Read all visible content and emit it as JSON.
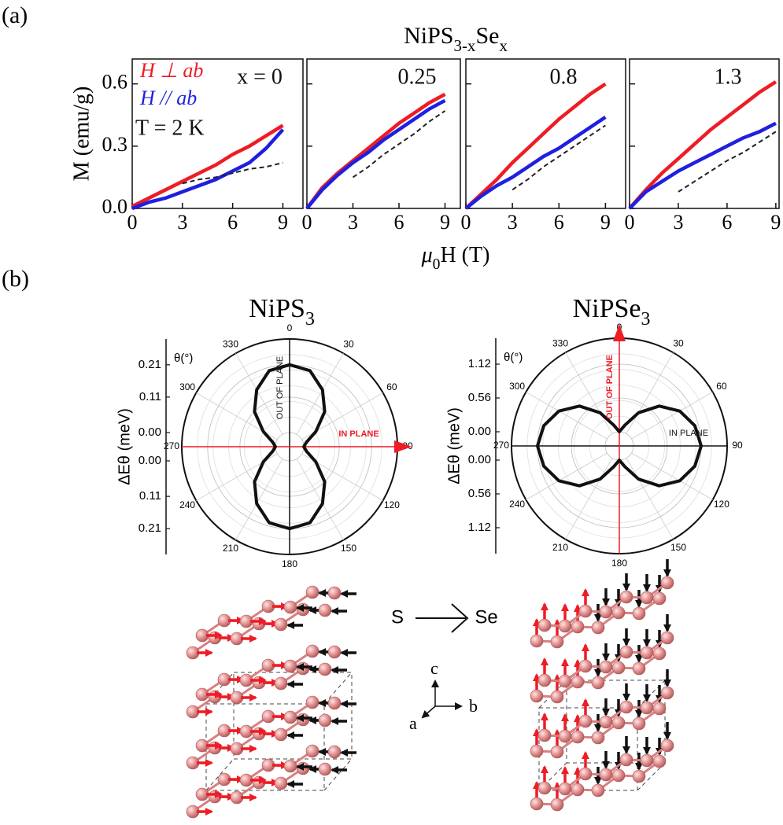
{
  "panel_labels": [
    "(a)",
    "(b)"
  ],
  "supertitle": [
    "NiPS",
    "3-x",
    "Se",
    "x"
  ],
  "xlabel": [
    "μ",
    "0",
    "H (T)"
  ],
  "schematic": {
    "from": "S",
    "to": "Se",
    "axes": [
      "c",
      "a",
      "b"
    ]
  },
  "chart_data": [
    {
      "type": "line",
      "ylabel": "M (emu/g)",
      "x": [
        0,
        1,
        2,
        3,
        4,
        5,
        6,
        7,
        8,
        9
      ],
      "series": [
        {
          "name": "H ⊥ ab",
          "color": "#ee1c25",
          "values": [
            0.01,
            0.05,
            0.09,
            0.13,
            0.17,
            0.21,
            0.26,
            0.3,
            0.35,
            0.4
          ]
        },
        {
          "name": "H // ab",
          "color": "#1f1fe0",
          "values": [
            0.0,
            0.03,
            0.05,
            0.08,
            0.11,
            0.14,
            0.18,
            0.22,
            0.29,
            0.38
          ]
        },
        {
          "color": "#222222",
          "style": "dashed",
          "values": [
            null,
            null,
            null,
            0.12,
            0.14,
            0.15,
            0.17,
            0.19,
            0.2,
            0.22
          ]
        }
      ],
      "xlim": [
        0,
        10.2
      ],
      "ylim": [
        0,
        0.72
      ],
      "xticks": [
        0,
        3,
        6,
        9
      ],
      "yticks": [
        {
          "value": 0,
          "label": "0.0"
        },
        0.3,
        0.6
      ],
      "annotations": [
        "x = 0",
        "T = 2 K"
      ]
    },
    {
      "type": "line",
      "x": [
        0,
        1,
        2,
        3,
        4,
        5,
        6,
        7,
        8,
        9
      ],
      "series": [
        {
          "color": "#ee1c25",
          "values": [
            0,
            0.1,
            0.17,
            0.23,
            0.29,
            0.35,
            0.41,
            0.46,
            0.51,
            0.55
          ]
        },
        {
          "color": "#1f1fe0",
          "values": [
            0,
            0.09,
            0.16,
            0.22,
            0.27,
            0.33,
            0.38,
            0.43,
            0.48,
            0.52
          ]
        },
        {
          "color": "#222222",
          "style": "dashed",
          "values": [
            null,
            null,
            null,
            0.15,
            0.2,
            0.26,
            0.31,
            0.36,
            0.42,
            0.47
          ]
        }
      ],
      "xlim": [
        0,
        10
      ],
      "ylim": [
        0,
        0.72
      ],
      "xticks": [
        0,
        3,
        6,
        9
      ],
      "annotations": [
        "0.25"
      ]
    },
    {
      "type": "line",
      "x": [
        0,
        1,
        2,
        3,
        4,
        5,
        6,
        7,
        8,
        9
      ],
      "series": [
        {
          "color": "#ee1c25",
          "values": [
            0,
            0.07,
            0.14,
            0.22,
            0.29,
            0.36,
            0.43,
            0.49,
            0.55,
            0.6
          ]
        },
        {
          "color": "#1f1fe0",
          "values": [
            0,
            0.06,
            0.11,
            0.15,
            0.2,
            0.25,
            0.29,
            0.34,
            0.39,
            0.44
          ]
        },
        {
          "color": "#222222",
          "style": "dashed",
          "values": [
            null,
            null,
            null,
            0.09,
            0.14,
            0.2,
            0.25,
            0.3,
            0.35,
            0.4
          ]
        }
      ],
      "xlim": [
        0,
        10.3
      ],
      "ylim": [
        0,
        0.72
      ],
      "xticks": [
        0,
        3,
        6,
        9
      ],
      "annotations": [
        "0.8"
      ]
    },
    {
      "type": "line",
      "x": [
        0,
        1,
        2,
        3,
        4,
        5,
        6,
        7,
        8,
        9
      ],
      "series": [
        {
          "color": "#ee1c25",
          "values": [
            0,
            0.09,
            0.17,
            0.24,
            0.31,
            0.38,
            0.44,
            0.5,
            0.56,
            0.61
          ]
        },
        {
          "color": "#1f1fe0",
          "values": [
            0,
            0.08,
            0.13,
            0.18,
            0.22,
            0.26,
            0.3,
            0.34,
            0.37,
            0.41
          ]
        },
        {
          "color": "#222222",
          "style": "dashed",
          "values": [
            null,
            null,
            null,
            0.08,
            0.13,
            0.18,
            0.23,
            0.27,
            0.32,
            0.37
          ]
        }
      ],
      "xlim": [
        0,
        9.2
      ],
      "ylim": [
        0,
        0.72
      ],
      "xticks": [
        0,
        3,
        6,
        9
      ],
      "annotations": [
        "1.3"
      ]
    },
    {
      "type": "polar",
      "title": [
        "NiPS",
        "3"
      ],
      "ylabel": "ΔEθ (meV)",
      "theta_label": "θ(°)",
      "theta": [
        0,
        15,
        30,
        45,
        60,
        75,
        90,
        105,
        120,
        135,
        150,
        165,
        180,
        195,
        210,
        225,
        240,
        255,
        270,
        285,
        300,
        315,
        330,
        345
      ],
      "values": [
        0.21,
        0.2,
        0.16,
        0.11,
        0.05,
        0.01,
        0.0,
        0.01,
        0.05,
        0.11,
        0.16,
        0.2,
        0.21,
        0.2,
        0.16,
        0.11,
        0.05,
        0.01,
        0.0,
        0.01,
        0.05,
        0.11,
        0.16,
        0.2
      ],
      "color": "#111111",
      "rlim": [
        0,
        0.29
      ],
      "rticks": [
        {
          "value": 0,
          "label": "0.00"
        },
        0.11,
        0.21
      ],
      "thetaticks": [
        0,
        30,
        60,
        90,
        120,
        150,
        180,
        210,
        240,
        270,
        300,
        330
      ],
      "highlight_angle": 90,
      "highlight_color": "#ee1c25",
      "annotations": [
        "OUT OF PLANE",
        "IN PLANE"
      ]
    },
    {
      "type": "polar",
      "title": [
        "NiPSe",
        "3"
      ],
      "ylabel": "ΔEθ (meV)",
      "theta_label": "θ(°)",
      "theta": [
        0,
        15,
        30,
        45,
        60,
        75,
        90,
        105,
        120,
        135,
        150,
        165,
        180,
        195,
        210,
        225,
        240,
        255,
        270,
        285,
        300,
        315,
        330,
        345
      ],
      "values": [
        0,
        0.12,
        0.4,
        0.7,
        0.92,
        1.06,
        1.12,
        1.06,
        0.92,
        0.7,
        0.4,
        0.12,
        0,
        0.12,
        0.4,
        0.7,
        0.92,
        1.06,
        1.12,
        1.06,
        0.92,
        0.7,
        0.4,
        0.12
      ],
      "color": "#111111",
      "rlim": [
        0,
        1.55
      ],
      "rticks": [
        {
          "value": 0,
          "label": "0.00"
        },
        0.56,
        1.12
      ],
      "thetaticks": [
        0,
        30,
        60,
        90,
        120,
        150,
        180,
        210,
        240,
        270,
        300,
        330
      ],
      "highlight_angle": 0,
      "highlight_color": "#ee1c25",
      "annotations": [
        "OUT OF PLANE",
        "IN PLANE"
      ]
    }
  ]
}
